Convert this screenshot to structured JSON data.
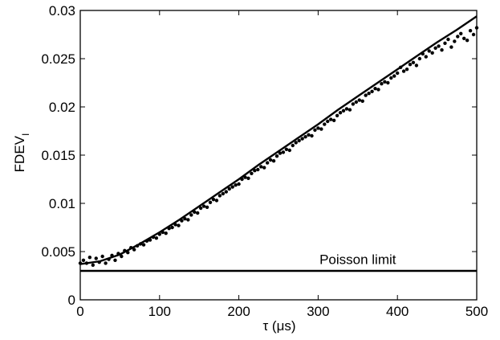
{
  "chart_data": {
    "type": "scatter",
    "xlabel": "τ (μs)",
    "ylabel": "FDEV",
    "ylabel_subscript": "I",
    "xlim": [
      0,
      500
    ],
    "ylim": [
      0,
      0.03
    ],
    "grid": false,
    "xticks": [
      0,
      100,
      200,
      300,
      400,
      500
    ],
    "xtick_labels": [
      "0",
      "100",
      "200",
      "300",
      "400",
      "500"
    ],
    "yticks": [
      0,
      0.005,
      0.01,
      0.015,
      0.02,
      0.025,
      0.03
    ],
    "ytick_labels": [
      "0",
      "0.005",
      "0.01",
      "0.015",
      "0.02",
      "0.025",
      "0.03"
    ],
    "annotations": [
      {
        "text": "Poisson limit",
        "x": 350,
        "y": 0.0037
      }
    ],
    "series": [
      {
        "kind": "points",
        "x": [
          0,
          4,
          8,
          12,
          16,
          20,
          24,
          28,
          32,
          36,
          40,
          44,
          48,
          52,
          56,
          60,
          64,
          68,
          72,
          76,
          80,
          84,
          88,
          92,
          96,
          100,
          104,
          108,
          112,
          116,
          120,
          124,
          128,
          132,
          136,
          140,
          144,
          148,
          152,
          156,
          160,
          164,
          168,
          172,
          176,
          180,
          184,
          188,
          192,
          196,
          200,
          204,
          208,
          212,
          216,
          220,
          224,
          228,
          232,
          236,
          240,
          244,
          248,
          252,
          256,
          260,
          264,
          268,
          272,
          276,
          280,
          284,
          288,
          292,
          296,
          300,
          304,
          308,
          312,
          316,
          320,
          324,
          328,
          332,
          336,
          340,
          344,
          348,
          352,
          356,
          360,
          364,
          368,
          372,
          376,
          380,
          384,
          388,
          392,
          396,
          400,
          404,
          408,
          412,
          416,
          420,
          424,
          428,
          432,
          436,
          440,
          444,
          448,
          452,
          456,
          460,
          464,
          468,
          472,
          476,
          480,
          484,
          488,
          492,
          496,
          500
        ],
        "y": [
          0.0038,
          0.0041,
          0.0038,
          0.0044,
          0.0036,
          0.0043,
          0.0039,
          0.0045,
          0.0038,
          0.0042,
          0.0046,
          0.0041,
          0.0048,
          0.0045,
          0.0051,
          0.0049,
          0.0054,
          0.0052,
          0.0056,
          0.0058,
          0.0057,
          0.0061,
          0.0062,
          0.0065,
          0.0064,
          0.0068,
          0.007,
          0.0069,
          0.0074,
          0.0075,
          0.0078,
          0.0077,
          0.0082,
          0.0084,
          0.0083,
          0.0088,
          0.0091,
          0.009,
          0.0095,
          0.0097,
          0.0096,
          0.0101,
          0.0104,
          0.0103,
          0.0108,
          0.011,
          0.0112,
          0.0115,
          0.0117,
          0.0119,
          0.012,
          0.0125,
          0.0127,
          0.0126,
          0.0131,
          0.0134,
          0.0135,
          0.0138,
          0.0137,
          0.0142,
          0.0145,
          0.0144,
          0.0149,
          0.0152,
          0.0153,
          0.0156,
          0.0155,
          0.016,
          0.0163,
          0.0165,
          0.0167,
          0.0169,
          0.0171,
          0.017,
          0.0176,
          0.0178,
          0.0177,
          0.0182,
          0.0185,
          0.0187,
          0.0186,
          0.0191,
          0.0194,
          0.0196,
          0.0198,
          0.0197,
          0.0203,
          0.0205,
          0.0207,
          0.0206,
          0.0212,
          0.0214,
          0.0216,
          0.0219,
          0.0218,
          0.0224,
          0.0226,
          0.0225,
          0.023,
          0.0232,
          0.0235,
          0.0241,
          0.0237,
          0.0239,
          0.0244,
          0.0246,
          0.0243,
          0.025,
          0.0255,
          0.0252,
          0.0258,
          0.0256,
          0.0261,
          0.0263,
          0.0259,
          0.0266,
          0.027,
          0.0262,
          0.0268,
          0.0273,
          0.0276,
          0.0271,
          0.0269,
          0.0279,
          0.0275,
          0.0282
        ]
      },
      {
        "kind": "curve",
        "x": [
          0,
          25,
          50,
          75,
          100,
          125,
          150,
          175,
          200,
          225,
          250,
          275,
          300,
          325,
          350,
          375,
          400,
          425,
          450,
          475,
          500
        ],
        "y": [
          0.0037,
          0.004,
          0.0047,
          0.0058,
          0.007,
          0.0083,
          0.0097,
          0.0111,
          0.0125,
          0.014,
          0.0154,
          0.0168,
          0.0182,
          0.0197,
          0.0211,
          0.0225,
          0.0239,
          0.0253,
          0.0267,
          0.028,
          0.0294
        ]
      },
      {
        "kind": "hline",
        "y": 0.003
      }
    ]
  }
}
